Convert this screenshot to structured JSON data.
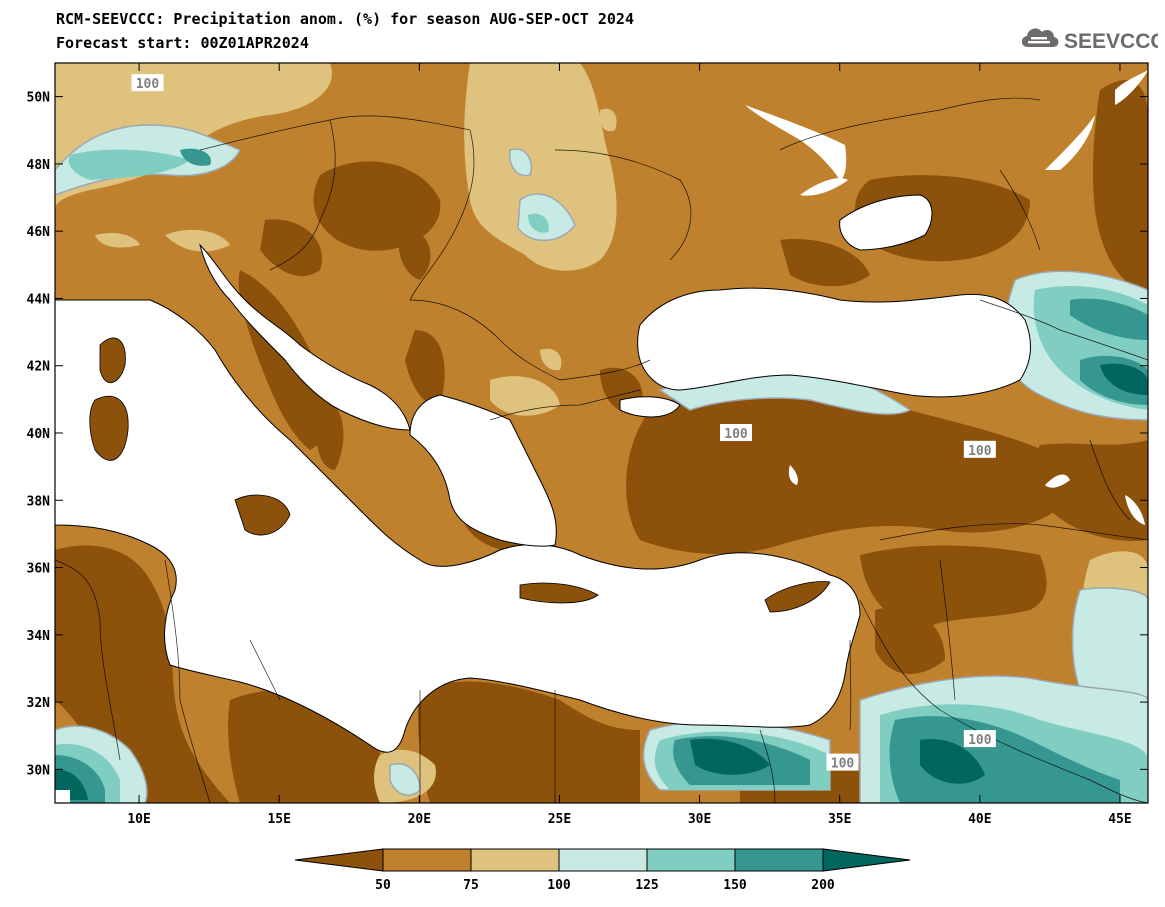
{
  "title_line1": "RCM-SEEVCCC: Precipitation anom. (%) for season AUG-SEP-OCT 2024",
  "title_line2": "Forecast start: 00Z01APR2024",
  "logo_text": "SEEVCCC",
  "map": {
    "lon_range": [
      7,
      46
    ],
    "lat_range": [
      29,
      51
    ],
    "lon_ticks": [
      {
        "value": 10,
        "label": "10E"
      },
      {
        "value": 15,
        "label": "15E"
      },
      {
        "value": 20,
        "label": "20E"
      },
      {
        "value": 25,
        "label": "25E"
      },
      {
        "value": 30,
        "label": "30E"
      },
      {
        "value": 35,
        "label": "35E"
      },
      {
        "value": 40,
        "label": "40E"
      },
      {
        "value": 45,
        "label": "45E"
      }
    ],
    "lat_ticks": [
      {
        "value": 30,
        "label": "30N"
      },
      {
        "value": 32,
        "label": "32N"
      },
      {
        "value": 34,
        "label": "34N"
      },
      {
        "value": 36,
        "label": "36N"
      },
      {
        "value": 38,
        "label": "38N"
      },
      {
        "value": 40,
        "label": "40N"
      },
      {
        "value": 42,
        "label": "42N"
      },
      {
        "value": 44,
        "label": "44N"
      },
      {
        "value": 46,
        "label": "46N"
      },
      {
        "value": 48,
        "label": "48N"
      },
      {
        "value": 50,
        "label": "50N"
      }
    ],
    "contour_labels": [
      {
        "text": "100",
        "lon": 10.3,
        "lat": 50.4
      },
      {
        "text": "100",
        "lon": 31.3,
        "lat": 40.0
      },
      {
        "text": "100",
        "lon": 40.0,
        "lat": 39.5
      },
      {
        "text": "100",
        "lon": 40.0,
        "lat": 30.9
      },
      {
        "text": "100",
        "lon": 35.1,
        "lat": 30.2
      }
    ]
  },
  "colorbar": {
    "colors": [
      "#8c510a",
      "#bf812d",
      "#dfc27d",
      "#c7eae5",
      "#80cdc1",
      "#35978f",
      "#01665e"
    ],
    "labels": [
      "50",
      "75",
      "100",
      "125",
      "150",
      "200"
    ]
  }
}
